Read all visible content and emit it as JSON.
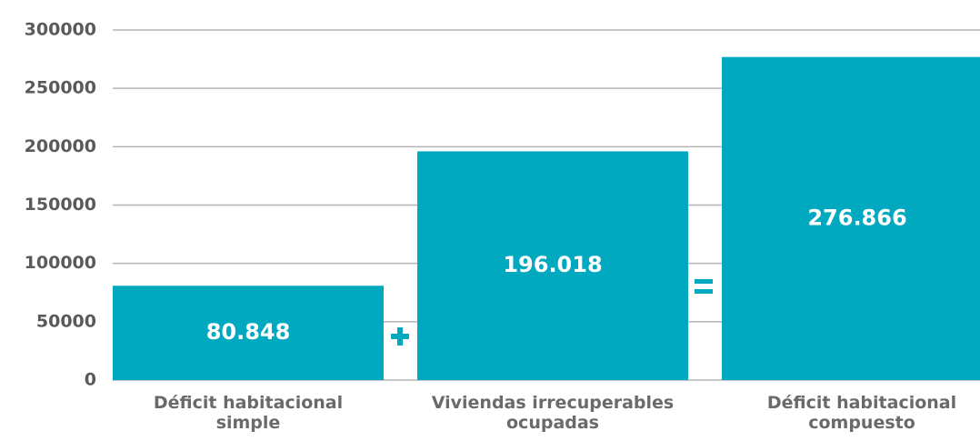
{
  "chart_data": {
    "type": "bar",
    "categories": [
      "Déficit habitacional\nsimple",
      "Viviendas irrecuperables\nocupadas",
      "Déficit habitacional\ncompuesto"
    ],
    "values": [
      80848,
      196018,
      276866
    ],
    "value_labels": [
      "80.848",
      "196.018",
      "276.866"
    ],
    "color": "#00a9c0",
    "ylim": [
      0,
      300000
    ],
    "yticks": [
      0,
      50000,
      100000,
      150000,
      200000,
      250000,
      300000
    ],
    "grid": true
  }
}
